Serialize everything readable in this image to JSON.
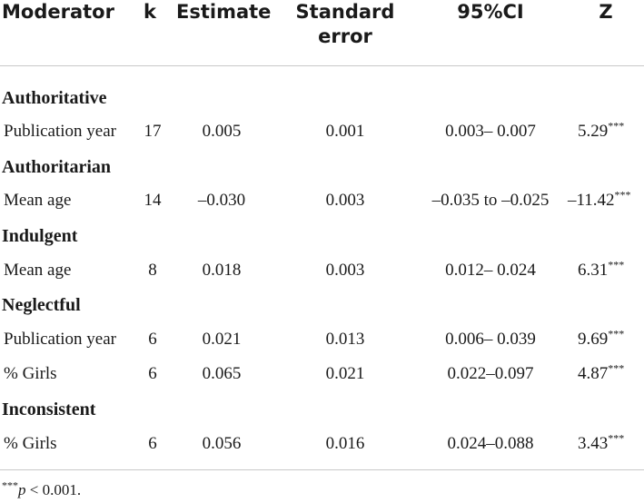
{
  "headers": {
    "moderator": "Moderator",
    "k": "k",
    "estimate": "Estimate",
    "se_line1": "Standard",
    "se_line2": "error",
    "ci": "95%CI",
    "z": "Z"
  },
  "groups": [
    {
      "label": "Authoritative"
    },
    {
      "label": "Authoritarian"
    },
    {
      "label": "Indulgent"
    },
    {
      "label": "Neglectful"
    },
    {
      "label": "Inconsistent"
    }
  ],
  "rows": [
    {
      "moderator": "Publication year",
      "k": "17",
      "estimate": "0.005",
      "se": "0.001",
      "ci": "0.003– 0.007",
      "z": "5.29",
      "stars": "***"
    },
    {
      "moderator": "Mean age",
      "k": "14",
      "estimate": "–0.030",
      "se": "0.003",
      "ci": "–0.035 to –0.025",
      "z": "–11.42",
      "stars": "***"
    },
    {
      "moderator": "Mean age",
      "k": "8",
      "estimate": "0.018",
      "se": "0.003",
      "ci": "0.012– 0.024",
      "z": "6.31",
      "stars": "***"
    },
    {
      "moderator": "Publication year",
      "k": "6",
      "estimate": "0.021",
      "se": "0.013",
      "ci": "0.006– 0.039",
      "z": "9.69",
      "stars": "***"
    },
    {
      "moderator": "% Girls",
      "k": "6",
      "estimate": "0.065",
      "se": "0.021",
      "ci": "0.022–0.097",
      "z": "4.87",
      "stars": "***"
    },
    {
      "moderator": "% Girls",
      "k": "6",
      "estimate": "0.056",
      "se": "0.016",
      "ci": "0.024–0.088",
      "z": "3.43",
      "stars": "***"
    }
  ],
  "footnote": {
    "stars": "***",
    "p": "p",
    "text": " < 0.001."
  }
}
